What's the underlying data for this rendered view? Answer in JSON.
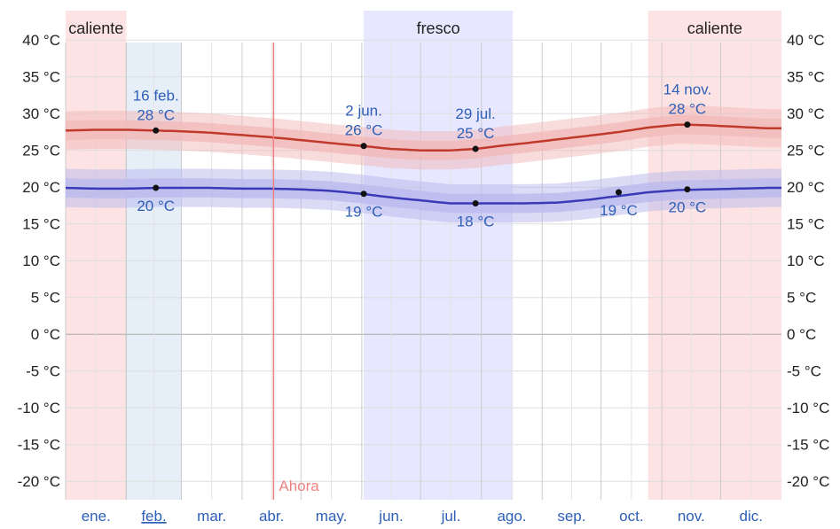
{
  "chart_data": {
    "type": "area",
    "y_ticks": [
      "40 °C",
      "35 °C",
      "30 °C",
      "25 °C",
      "20 °C",
      "15 °C",
      "10 °C",
      "5 °C",
      "0 °C",
      "-5 °C",
      "-10 °C",
      "-15 °C",
      "-20 °C"
    ],
    "y_tick_values": [
      40,
      35,
      30,
      25,
      20,
      15,
      10,
      5,
      0,
      -5,
      -10,
      -15,
      -20
    ],
    "ylim": [
      -22.5,
      44
    ],
    "months": [
      "ene.",
      "feb.",
      "mar.",
      "abr.",
      "may.",
      "jun.",
      "jul.",
      "ago.",
      "sep.",
      "oct.",
      "nov.",
      "dic."
    ],
    "selected_month": "feb.",
    "grid": true,
    "season_bands": [
      {
        "label": "caliente",
        "from_day": 1,
        "to_day": 32,
        "color": "#fde3e3"
      },
      {
        "label": "fresco",
        "from_day": 153,
        "to_day": 229,
        "color": "#e7e7ff"
      },
      {
        "label": "caliente",
        "from_day": 298,
        "to_day": 366,
        "color": "#fde3e3"
      }
    ],
    "selected_month_band": {
      "from_day": 32,
      "to_day": 60
    },
    "now": {
      "label": "Ahora",
      "day": 107
    },
    "series": [
      {
        "kind": "high",
        "color": "#c0392b",
        "band_color": "#f2b8b8",
        "x_days": [
          1,
          16,
          32,
          47,
          60,
          75,
          90,
          105,
          121,
          136,
          152,
          167,
          182,
          197,
          210,
          222,
          236,
          252,
          268,
          283,
          298,
          313,
          318,
          329,
          344,
          359,
          366
        ],
        "values": [
          27.7,
          27.8,
          27.8,
          27.7,
          27.6,
          27.4,
          27.1,
          26.8,
          26.4,
          26.0,
          25.6,
          25.2,
          25.0,
          25.0,
          25.2,
          25.6,
          26.0,
          26.5,
          27.0,
          27.5,
          28.1,
          28.5,
          28.5,
          28.4,
          28.2,
          28.0,
          28.0
        ]
      },
      {
        "kind": "low",
        "color": "#3a3ab8",
        "band_color": "#b8b8ee",
        "x_days": [
          1,
          16,
          32,
          47,
          60,
          75,
          90,
          105,
          121,
          136,
          152,
          167,
          182,
          197,
          210,
          222,
          236,
          252,
          268,
          283,
          298,
          313,
          329,
          344,
          359,
          366
        ],
        "values": [
          19.9,
          19.8,
          19.8,
          19.9,
          19.9,
          19.9,
          19.8,
          19.8,
          19.7,
          19.5,
          19.1,
          18.6,
          18.2,
          17.8,
          17.8,
          17.8,
          17.8,
          17.9,
          18.3,
          18.8,
          19.3,
          19.6,
          19.7,
          19.8,
          19.9,
          19.9
        ]
      }
    ],
    "annotations": [
      {
        "day": 47,
        "value": 27.7,
        "lines": [
          "16 feb.",
          "28 °C"
        ],
        "position": "above"
      },
      {
        "day": 47,
        "value": 19.9,
        "lines": [
          "20 °C"
        ],
        "position": "below"
      },
      {
        "day": 153,
        "value": 25.6,
        "lines": [
          "2 jun.",
          "26 °C"
        ],
        "position": "above"
      },
      {
        "day": 153,
        "value": 19.1,
        "lines": [
          "19 °C"
        ],
        "position": "below"
      },
      {
        "day": 210,
        "value": 25.2,
        "lines": [
          "29 jul.",
          "25 °C"
        ],
        "position": "above"
      },
      {
        "day": 210,
        "value": 17.8,
        "lines": [
          "18 °C"
        ],
        "position": "below"
      },
      {
        "day": 283,
        "value": 19.3,
        "lines": [
          "19 °C"
        ],
        "position": "below"
      },
      {
        "day": 318,
        "value": 28.5,
        "lines": [
          "14 nov.",
          "28 °C"
        ],
        "position": "above"
      },
      {
        "day": 318,
        "value": 19.7,
        "lines": [
          "20 °C"
        ],
        "position": "below"
      }
    ]
  }
}
